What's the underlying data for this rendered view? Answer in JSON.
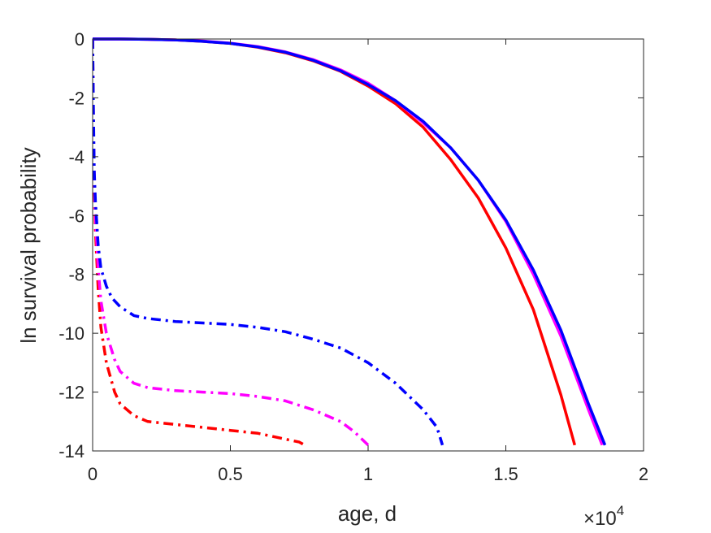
{
  "chart_data": {
    "type": "line",
    "xlabel": "age, d",
    "ylabel": "ln survival probability",
    "x_exponent_label": {
      "base": "×10",
      "power": "4"
    },
    "xlim": [
      0,
      20000
    ],
    "ylim": [
      -14,
      0
    ],
    "grid": false,
    "xticks": [
      0,
      5000,
      10000,
      15000,
      20000
    ],
    "xtick_labels": [
      "0",
      "0.5",
      "1",
      "1.5",
      "2"
    ],
    "yticks": [
      0,
      -2,
      -4,
      -6,
      -8,
      -10,
      -12,
      -14
    ],
    "ytick_labels": [
      "0",
      "-2",
      "-4",
      "-6",
      "-8",
      "-10",
      "-12",
      "-14"
    ],
    "series": [
      {
        "color": "#ff0000",
        "style": "solid",
        "x": [
          0,
          1000,
          2000,
          3000,
          4000,
          5000,
          6000,
          7000,
          8000,
          9000,
          10000,
          11000,
          12000,
          13000,
          14000,
          15000,
          16000,
          17000,
          17500
        ],
        "y": [
          0,
          0,
          -0.01,
          -0.03,
          -0.08,
          -0.15,
          -0.28,
          -0.47,
          -0.74,
          -1.1,
          -1.6,
          -2.2,
          -3.0,
          -4.1,
          -5.4,
          -7.1,
          -9.2,
          -12.1,
          -13.8
        ]
      },
      {
        "color": "#ff00ff",
        "style": "solid",
        "x": [
          0,
          1000,
          2000,
          3000,
          4000,
          5000,
          6000,
          7000,
          8000,
          9000,
          10000,
          11000,
          12000,
          13000,
          14000,
          15000,
          16000,
          17000,
          18000,
          18500
        ],
        "y": [
          0,
          0,
          -0.01,
          -0.03,
          -0.07,
          -0.14,
          -0.26,
          -0.44,
          -0.7,
          -1.05,
          -1.5,
          -2.1,
          -2.85,
          -3.7,
          -4.8,
          -6.2,
          -8.0,
          -10.1,
          -12.6,
          -13.8
        ]
      },
      {
        "color": "#0000ff",
        "style": "solid",
        "x": [
          0,
          1000,
          2000,
          3000,
          4000,
          5000,
          6000,
          7000,
          8000,
          9000,
          10000,
          11000,
          12000,
          13000,
          14000,
          15000,
          16000,
          17000,
          18000,
          18600
        ],
        "y": [
          0,
          0,
          -0.01,
          -0.03,
          -0.08,
          -0.15,
          -0.27,
          -0.45,
          -0.72,
          -1.08,
          -1.55,
          -2.1,
          -2.8,
          -3.7,
          -4.8,
          -6.15,
          -7.85,
          -9.9,
          -12.4,
          -13.8
        ]
      },
      {
        "color": "#ff0000",
        "style": "dashdot",
        "x": [
          0,
          30,
          60,
          100,
          200,
          300,
          500,
          800,
          1000,
          1500,
          2000,
          2500,
          3000,
          4000,
          5000,
          6000,
          6500,
          7000,
          7500,
          7700
        ],
        "y": [
          0,
          -3.0,
          -5.0,
          -6.5,
          -8.5,
          -9.8,
          -11.0,
          -12.0,
          -12.4,
          -12.8,
          -13.0,
          -13.05,
          -13.1,
          -13.2,
          -13.3,
          -13.4,
          -13.5,
          -13.6,
          -13.7,
          -13.8
        ]
      },
      {
        "color": "#ff00ff",
        "style": "dashdot",
        "x": [
          0,
          30,
          60,
          100,
          200,
          300,
          500,
          800,
          1000,
          1500,
          2000,
          3000,
          4000,
          5000,
          6000,
          7000,
          8000,
          9000,
          9500,
          10000
        ],
        "y": [
          0,
          -3.0,
          -4.6,
          -6.0,
          -7.8,
          -8.9,
          -10.0,
          -10.9,
          -11.3,
          -11.7,
          -11.85,
          -11.95,
          -12.0,
          -12.05,
          -12.15,
          -12.3,
          -12.6,
          -13.0,
          -13.35,
          -13.8
        ]
      },
      {
        "color": "#0000ff",
        "style": "dashdot",
        "x": [
          0,
          30,
          60,
          100,
          200,
          300,
          400,
          500,
          700,
          1000,
          1500,
          2000,
          2500,
          3000,
          4000,
          5000,
          6000,
          7000,
          8000,
          9000,
          10000,
          11000,
          12000,
          12500,
          12700
        ],
        "y": [
          0,
          -2.5,
          -4.5,
          -5.5,
          -7.0,
          -7.8,
          -8.1,
          -8.4,
          -8.8,
          -9.1,
          -9.4,
          -9.5,
          -9.55,
          -9.6,
          -9.65,
          -9.7,
          -9.8,
          -9.95,
          -10.2,
          -10.5,
          -11.0,
          -11.7,
          -12.6,
          -13.2,
          -13.8
        ]
      }
    ]
  }
}
